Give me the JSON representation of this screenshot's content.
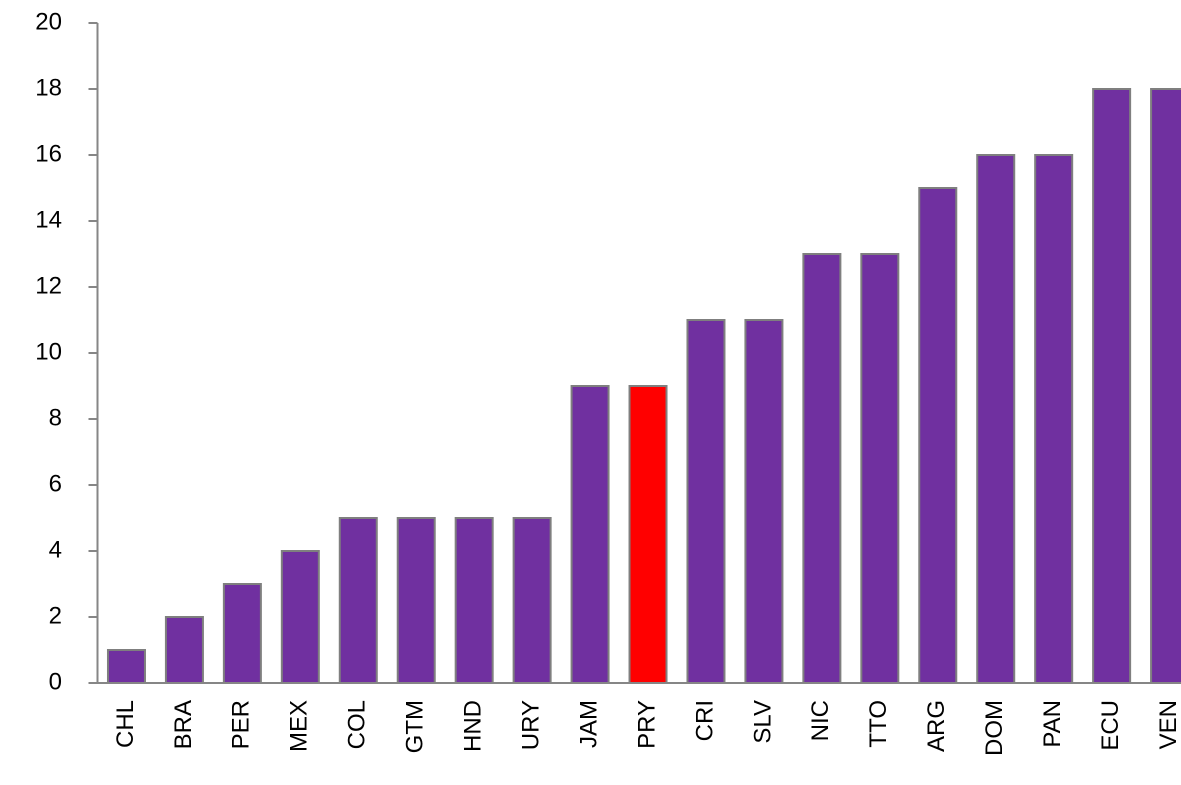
{
  "chart_data": {
    "type": "bar",
    "categories": [
      "CHL",
      "BRA",
      "PER",
      "MEX",
      "COL",
      "GTM",
      "HND",
      "URY",
      "JAM",
      "PRY",
      "CRI",
      "SLV",
      "NIC",
      "TTO",
      "ARG",
      "DOM",
      "PAN",
      "ECU",
      "VEN"
    ],
    "values": [
      1,
      2,
      3,
      4,
      5,
      5,
      5,
      5,
      9,
      9,
      11,
      11,
      13,
      13,
      15,
      16,
      16,
      18,
      18
    ],
    "colors": [
      "#7030a0",
      "#7030a0",
      "#7030a0",
      "#7030a0",
      "#7030a0",
      "#7030a0",
      "#7030a0",
      "#7030a0",
      "#7030a0",
      "#ff0000",
      "#7030a0",
      "#7030a0",
      "#7030a0",
      "#7030a0",
      "#7030a0",
      "#7030a0",
      "#7030a0",
      "#7030a0",
      "#7030a0"
    ],
    "ylim": [
      0,
      20
    ],
    "yticks": [
      0,
      2,
      4,
      6,
      8,
      10,
      12,
      14,
      16,
      18,
      20
    ],
    "grid": false
  }
}
